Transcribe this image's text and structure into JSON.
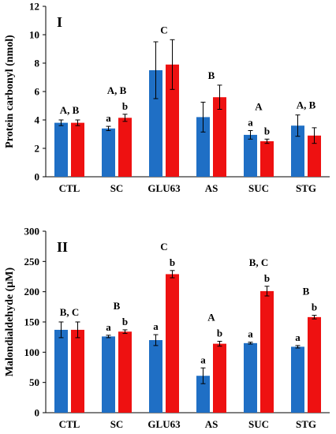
{
  "chart_data": [
    {
      "type": "bar",
      "panel_label": "I",
      "ylabel": "Protein carbonyl (nmol)",
      "xlabel": "",
      "ylim": [
        0,
        12
      ],
      "yticks": [
        0,
        2,
        4,
        6,
        8,
        10,
        12
      ],
      "categories": [
        "CTL",
        "SC",
        "GLU63",
        "AS",
        "SUC",
        "STG"
      ],
      "series": [
        {
          "color": "#1f6fc5",
          "values": [
            3.8,
            3.4,
            7.5,
            4.2,
            2.95,
            3.6
          ],
          "errors": [
            0.2,
            0.15,
            2.0,
            1.05,
            0.3,
            0.75
          ]
        },
        {
          "color": "#ee1111",
          "values": [
            3.8,
            4.15,
            7.9,
            5.6,
            2.5,
            2.9
          ],
          "errors": [
            0.2,
            0.25,
            1.75,
            0.85,
            0.15,
            0.55
          ]
        }
      ],
      "group_annotations": [
        "A, B",
        "A, B",
        "C",
        "B",
        "A",
        "A, B"
      ],
      "bar_annotations": [
        [
          "",
          ""
        ],
        [
          "a",
          "b"
        ],
        [
          "",
          ""
        ],
        [
          "",
          ""
        ],
        [
          "a",
          "b"
        ],
        [
          "",
          ""
        ]
      ]
    },
    {
      "type": "bar",
      "panel_label": "II",
      "ylabel": "Malondialdehyde (µM)",
      "xlabel": "",
      "ylim": [
        0,
        300
      ],
      "yticks": [
        0,
        50,
        100,
        150,
        200,
        250,
        300
      ],
      "categories": [
        "CTL",
        "SC",
        "GLU63",
        "AS",
        "SUC",
        "STG"
      ],
      "series": [
        {
          "color": "#1f6fc5",
          "values": [
            137,
            126,
            120,
            61,
            115,
            109
          ],
          "errors": [
            13,
            2,
            9,
            13,
            1.5,
            2
          ]
        },
        {
          "color": "#ee1111",
          "values": [
            137,
            134,
            229,
            114,
            201,
            158
          ],
          "errors": [
            13,
            3,
            6,
            4,
            8,
            3
          ]
        }
      ],
      "group_annotations": [
        "B, C",
        "B",
        "C",
        "A",
        "B, C",
        "B"
      ],
      "bar_annotations": [
        [
          "",
          ""
        ],
        [
          "a",
          "b"
        ],
        [
          "a",
          "b"
        ],
        [
          "a",
          "b"
        ],
        [
          "a",
          "b"
        ],
        [
          "a",
          "b"
        ]
      ]
    }
  ]
}
